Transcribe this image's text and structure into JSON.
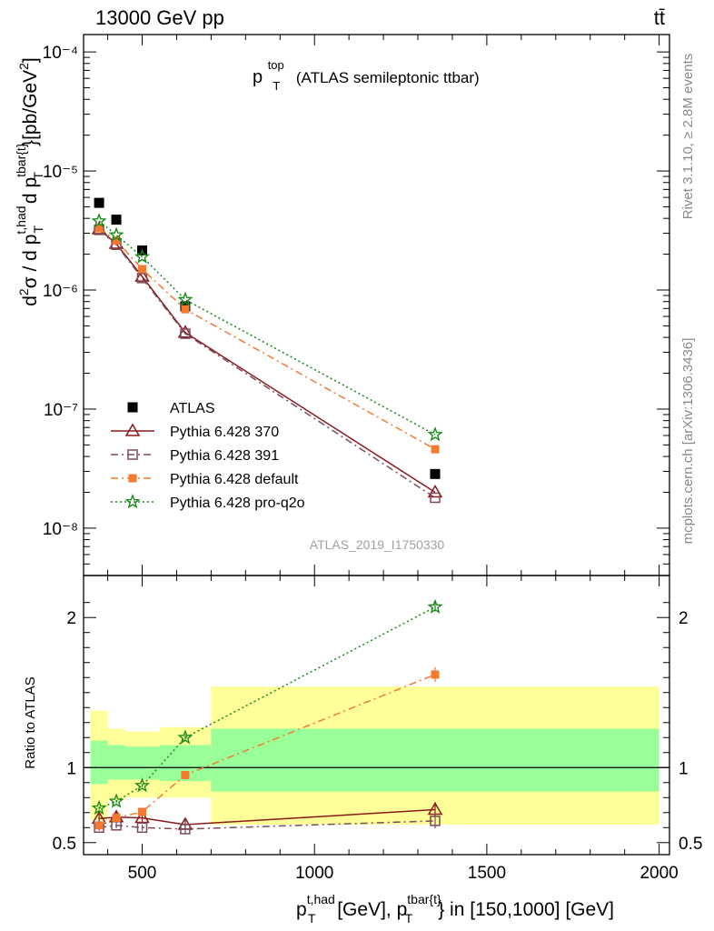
{
  "header": {
    "left": "13000 GeV pp",
    "right": "tt̄"
  },
  "side_labels": {
    "rivet": "Rivet 3.1.10, ≥ 2.8M events",
    "mcplots": "mcplots.cern.ch [arXiv:1306.3436]"
  },
  "watermark": "ATLAS_2019_I1750330",
  "main_title": {
    "base": "p",
    "sup": "top",
    "sub": "T",
    "suffix": " (ATLAS semileptonic ttbar)"
  },
  "axes": {
    "y_main": "d²σ / d p_T^{t,had} d p_T^{tbar{t}} [pb/GeV²]",
    "y_ratio": "Ratio to ATLAS",
    "x": "p_T^{t,had} [GeV], p_T^{tbar{t}} in [150,1000] [GeV]"
  },
  "colors": {
    "atlas": "#000000",
    "p370": "#8b1a1a",
    "p391": "#7a4b5e",
    "default": "#f47a30",
    "proq2o": "#1a8a1a",
    "band_inner": "#99ff99",
    "band_outer": "#ffff99"
  },
  "chart_data": [
    {
      "type": "scatter",
      "panel": "main",
      "log_y": true,
      "xlim": [
        330,
        2030
      ],
      "ylim": [
        4e-09,
        0.00014
      ],
      "x_ticks": [
        "500",
        "1000",
        "1500",
        "2000"
      ],
      "y_ticks": [
        {
          "value": 1e-08,
          "label": "10⁻⁸"
        },
        {
          "value": 1e-07,
          "label": "10⁻⁷"
        },
        {
          "value": 1e-06,
          "label": "10⁻⁶"
        },
        {
          "value": 1e-05,
          "label": "10⁻⁵"
        },
        {
          "value": 0.0001,
          "label": "10⁻⁴"
        }
      ],
      "legend_position": "lower-left",
      "series": [
        {
          "key": "atlas",
          "name": "ATLAS",
          "marker": "square-filled",
          "line": "none",
          "x": [
            375,
            425,
            500,
            625,
            1350
          ],
          "y": [
            5.4e-06,
            3.9e-06,
            2.15e-06,
            7.3e-07,
            2.85e-08
          ]
        },
        {
          "key": "p370",
          "name": "Pythia 6.428 370",
          "marker": "triangle-open",
          "line": "solid",
          "x": [
            375,
            425,
            500,
            625,
            1350
          ],
          "y": [
            3.25e-06,
            2.45e-06,
            1.3e-06,
            4.4e-07,
            2e-08
          ]
        },
        {
          "key": "p391",
          "name": "Pythia 6.428 391",
          "marker": "square-open",
          "line": "dashdot",
          "x": [
            375,
            425,
            500,
            625,
            1350
          ],
          "y": [
            3.2e-06,
            2.4e-06,
            1.26e-06,
            4.3e-07,
            1.8e-08
          ]
        },
        {
          "key": "default",
          "name": "Pythia 6.428 default",
          "marker": "square-filled-small",
          "line": "dashdot",
          "x": [
            375,
            425,
            500,
            625,
            1350
          ],
          "y": [
            3.3e-06,
            2.6e-06,
            1.5e-06,
            6.9e-07,
            4.6e-08
          ]
        },
        {
          "key": "proq2o",
          "name": "Pythia 6.428 pro-q2o",
          "marker": "star",
          "line": "dotted",
          "x": [
            375,
            425,
            500,
            625,
            1350
          ],
          "y": [
            3.8e-06,
            2.9e-06,
            1.9e-06,
            8.3e-07,
            6.1e-08
          ]
        }
      ]
    },
    {
      "type": "scatter",
      "panel": "ratio",
      "xlim": [
        330,
        2030
      ],
      "ylim": [
        0.42,
        2.28
      ],
      "y_ticks": [
        {
          "value": 0.5,
          "label": "0.5"
        },
        {
          "value": 1,
          "label": "1"
        },
        {
          "value": 2,
          "label": "2"
        }
      ],
      "reference_line": 1,
      "bands": [
        {
          "x0": 350,
          "x1": 400,
          "inner": [
            0.89,
            1.18
          ],
          "outer": [
            0.65,
            1.38
          ]
        },
        {
          "x0": 400,
          "x1": 450,
          "inner": [
            0.92,
            1.15
          ],
          "outer": [
            0.78,
            1.26
          ]
        },
        {
          "x0": 450,
          "x1": 550,
          "inner": [
            0.92,
            1.14
          ],
          "outer": [
            0.8,
            1.24
          ]
        },
        {
          "x0": 550,
          "x1": 700,
          "inner": [
            0.91,
            1.15
          ],
          "outer": [
            0.8,
            1.27
          ]
        },
        {
          "x0": 700,
          "x1": 2000,
          "inner": [
            0.84,
            1.26
          ],
          "outer": [
            0.62,
            1.54
          ]
        }
      ],
      "series": [
        {
          "key": "p370",
          "x": [
            375,
            425,
            500,
            625,
            1350
          ],
          "y": [
            0.66,
            0.67,
            0.665,
            0.62,
            0.72
          ],
          "err": [
            0.03,
            0.03,
            0.025,
            0.03,
            0.05
          ]
        },
        {
          "key": "p391",
          "x": [
            375,
            425,
            500,
            625,
            1350
          ],
          "y": [
            0.6,
            0.615,
            0.6,
            0.59,
            0.645
          ],
          "err": [
            0.02,
            0.02,
            0.02,
            0.03,
            0.05
          ]
        },
        {
          "key": "default",
          "x": [
            375,
            425,
            500,
            625,
            1350
          ],
          "y": [
            0.615,
            0.665,
            0.705,
            0.95,
            1.62
          ],
          "err": [
            0.02,
            0.02,
            0.02,
            0.02,
            0.05
          ]
        },
        {
          "key": "proq2o",
          "x": [
            375,
            425,
            500,
            625,
            1350
          ],
          "y": [
            0.73,
            0.775,
            0.88,
            1.2,
            2.07
          ],
          "err": [
            0.01,
            0.01,
            0.01,
            0.02,
            0.03
          ]
        }
      ]
    }
  ]
}
